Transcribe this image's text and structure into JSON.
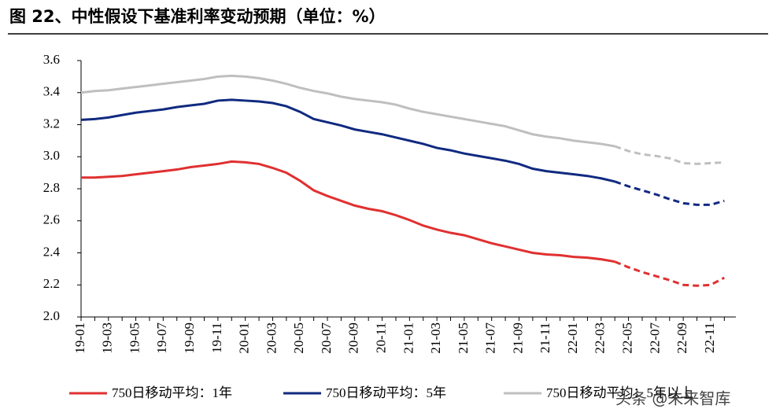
{
  "chart_data": {
    "type": "line",
    "title": "图 22、中性假设下基准利率变动预期（单位：%）",
    "watermark": "头条 @未来智库",
    "categories": [
      "19-01",
      null,
      "19-03",
      null,
      "19-05",
      null,
      "19-07",
      null,
      "19-09",
      null,
      "19-11",
      null,
      "20-01",
      null,
      "20-03",
      null,
      "20-05",
      null,
      "20-07",
      null,
      "20-09",
      null,
      "20-11",
      null,
      "21-01",
      null,
      "21-03",
      null,
      "21-05",
      null,
      "21-07",
      null,
      "21-09",
      null,
      "21-11",
      null,
      "22-01",
      null,
      "22-03",
      null,
      "22-05",
      null,
      "22-07",
      null,
      "22-09",
      null,
      "22-11",
      null
    ],
    "ylim": [
      2.0,
      3.6
    ],
    "yticks": [
      {
        "value": 2.0,
        "label": "2.0"
      },
      2.2,
      2.4,
      2.6,
      2.8,
      {
        "value": 3.0,
        "label": "3.0"
      },
      3.2,
      3.4,
      3.6
    ],
    "grid": false,
    "legend": "bottom",
    "series": [
      {
        "name": "750日移动平均：1年",
        "color": "#e03030",
        "values": [
          2.87,
          2.87,
          2.875,
          2.88,
          2.89,
          2.9,
          2.91,
          2.92,
          2.935,
          2.945,
          2.955,
          2.97,
          2.965,
          2.955,
          2.93,
          2.9,
          2.85,
          2.79,
          2.755,
          2.725,
          2.695,
          2.675,
          2.66,
          2.635,
          2.605,
          2.57,
          2.545,
          2.525,
          2.51,
          2.485,
          2.46,
          2.44,
          2.42,
          2.4,
          2.39,
          2.385,
          2.375,
          2.37,
          2.36,
          2.345,
          null,
          null,
          null,
          null,
          null,
          null,
          null,
          null
        ],
        "dashed_values": [
          null,
          null,
          null,
          null,
          null,
          null,
          null,
          null,
          null,
          null,
          null,
          null,
          null,
          null,
          null,
          null,
          null,
          null,
          null,
          null,
          null,
          null,
          null,
          null,
          null,
          null,
          null,
          null,
          null,
          null,
          null,
          null,
          null,
          null,
          null,
          null,
          null,
          null,
          null,
          2.345,
          2.31,
          2.28,
          2.255,
          2.23,
          2.2,
          2.195,
          2.2,
          2.245
        ]
      },
      {
        "name": "750日移动平均：5年",
        "color": "#102a80",
        "values": [
          3.23,
          3.235,
          3.245,
          3.26,
          3.275,
          3.285,
          3.295,
          3.31,
          3.32,
          3.33,
          3.35,
          3.355,
          3.35,
          3.345,
          3.335,
          3.315,
          3.28,
          3.235,
          3.215,
          3.195,
          3.17,
          3.155,
          3.14,
          3.12,
          3.1,
          3.08,
          3.055,
          3.04,
          3.02,
          3.005,
          2.99,
          2.975,
          2.955,
          2.925,
          2.91,
          2.9,
          2.89,
          2.88,
          2.865,
          2.845,
          null,
          null,
          null,
          null,
          null,
          null,
          null,
          null
        ],
        "dashed_values": [
          null,
          null,
          null,
          null,
          null,
          null,
          null,
          null,
          null,
          null,
          null,
          null,
          null,
          null,
          null,
          null,
          null,
          null,
          null,
          null,
          null,
          null,
          null,
          null,
          null,
          null,
          null,
          null,
          null,
          null,
          null,
          null,
          null,
          null,
          null,
          null,
          null,
          null,
          null,
          2.845,
          2.815,
          2.79,
          2.765,
          2.735,
          2.71,
          2.7,
          2.7,
          2.725
        ]
      },
      {
        "name": "750日移动平均：5年以上",
        "color": "#bfbfbf",
        "values": [
          3.4,
          3.41,
          3.415,
          3.425,
          3.435,
          3.445,
          3.455,
          3.465,
          3.475,
          3.485,
          3.5,
          3.505,
          3.5,
          3.49,
          3.475,
          3.455,
          3.43,
          3.41,
          3.395,
          3.375,
          3.36,
          3.35,
          3.34,
          3.325,
          3.3,
          3.28,
          3.265,
          3.25,
          3.235,
          3.22,
          3.205,
          3.19,
          3.165,
          3.14,
          3.125,
          3.115,
          3.1,
          3.09,
          3.08,
          3.065,
          null,
          null,
          null,
          null,
          null,
          null,
          null,
          null
        ],
        "dashed_values": [
          null,
          null,
          null,
          null,
          null,
          null,
          null,
          null,
          null,
          null,
          null,
          null,
          null,
          null,
          null,
          null,
          null,
          null,
          null,
          null,
          null,
          null,
          null,
          null,
          null,
          null,
          null,
          null,
          null,
          null,
          null,
          null,
          null,
          null,
          null,
          null,
          null,
          null,
          null,
          3.065,
          3.035,
          3.015,
          3.005,
          2.99,
          2.96,
          2.955,
          2.96,
          2.965
        ]
      }
    ]
  }
}
